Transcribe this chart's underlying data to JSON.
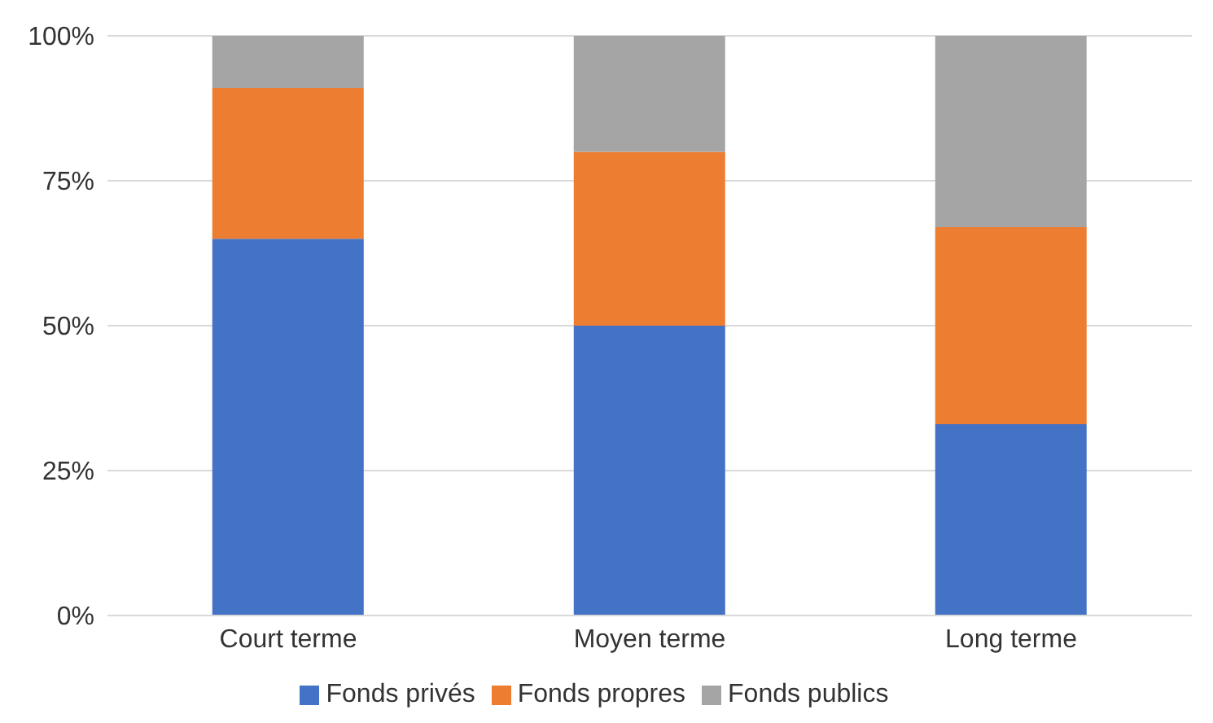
{
  "chart_data": {
    "type": "bar",
    "stacked": true,
    "categories": [
      "Court terme",
      "Moyen terme",
      "Long terme"
    ],
    "series": [
      {
        "name": "Fonds privés",
        "color": "#4472c4",
        "values": [
          65,
          50,
          33
        ]
      },
      {
        "name": "Fonds propres",
        "color": "#ed7d31",
        "values": [
          26,
          30,
          34
        ]
      },
      {
        "name": "Fonds publics",
        "color": "#a5a5a5",
        "values": [
          9,
          20,
          33
        ]
      }
    ],
    "ylim": [
      0,
      100
    ],
    "yticks": [
      {
        "value": 0,
        "label": "0%"
      },
      {
        "value": 25,
        "label": "25%"
      },
      {
        "value": 50,
        "label": "50%"
      },
      {
        "value": 75,
        "label": "75%"
      },
      {
        "value": 100,
        "label": "100%"
      }
    ],
    "grid": "y",
    "legend": "bottom"
  }
}
